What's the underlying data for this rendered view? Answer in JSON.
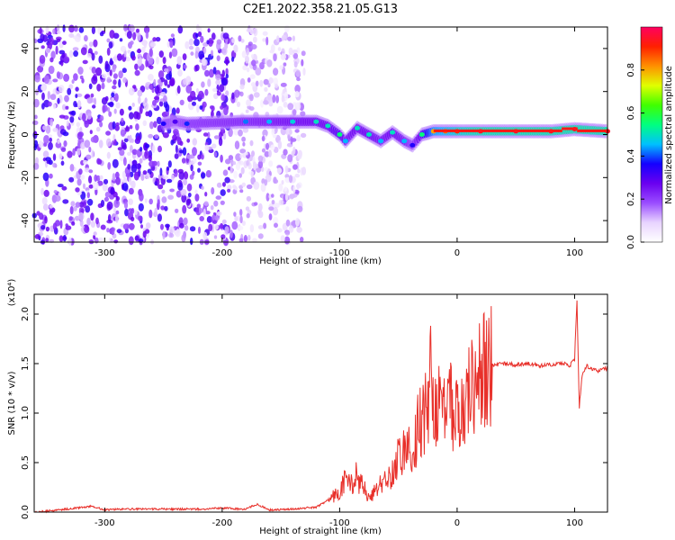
{
  "figure_title": "C2E1.2022.358.21.05.G13",
  "chart_data": [
    {
      "type": "heatmap",
      "title": "C2E1.2022.358.21.05.G13",
      "xlabel": "Height of straight line (km)",
      "ylabel": "Frequency (Hz)",
      "xlim": [
        -360,
        128
      ],
      "ylim": [
        -50,
        50
      ],
      "xticks": [
        -300,
        -200,
        -100,
        0,
        100
      ],
      "yticks": [
        -40,
        -20,
        0,
        20,
        40
      ],
      "grid": false,
      "colorbar": {
        "label": "Normalized spectral amplitude",
        "range": [
          0.0,
          1.0
        ],
        "ticks": [
          "0.0",
          "0.2",
          "0.4",
          "0.6",
          "0.8"
        ],
        "colors": [
          "#ffffff",
          "#e8d4ff",
          "#9a4dff",
          "#6a00f0",
          "#1400ff",
          "#00c0ff",
          "#00ff80",
          "#40ff00",
          "#e0ff00",
          "#ff9000",
          "#ff2000",
          "#ff0060"
        ]
      },
      "ridge": [
        {
          "x": -250,
          "y": 5,
          "amp": 0.35
        },
        {
          "x": -240,
          "y": 6,
          "amp": 0.3
        },
        {
          "x": -230,
          "y": 5,
          "amp": 0.38
        },
        {
          "x": -180,
          "y": 6,
          "amp": 0.42
        },
        {
          "x": -160,
          "y": 6,
          "amp": 0.45
        },
        {
          "x": -140,
          "y": 6,
          "amp": 0.48
        },
        {
          "x": -120,
          "y": 6,
          "amp": 0.5
        },
        {
          "x": -110,
          "y": 4,
          "amp": 0.5
        },
        {
          "x": -100,
          "y": 0,
          "amp": 0.55
        },
        {
          "x": -95,
          "y": -3,
          "amp": 0.45
        },
        {
          "x": -85,
          "y": 3,
          "amp": 0.5
        },
        {
          "x": -75,
          "y": 0,
          "amp": 0.5
        },
        {
          "x": -65,
          "y": -3,
          "amp": 0.45
        },
        {
          "x": -55,
          "y": 1,
          "amp": 0.5
        },
        {
          "x": -45,
          "y": -3,
          "amp": 0.45
        },
        {
          "x": -38,
          "y": -5,
          "amp": 0.35
        },
        {
          "x": -30,
          "y": 0,
          "amp": 0.55
        },
        {
          "x": -20,
          "y": 1.5,
          "amp": 0.8
        },
        {
          "x": -10,
          "y": 1.5,
          "amp": 0.85
        },
        {
          "x": 0,
          "y": 1.5,
          "amp": 0.9
        },
        {
          "x": 20,
          "y": 1.5,
          "amp": 0.95
        },
        {
          "x": 50,
          "y": 1.5,
          "amp": 0.95
        },
        {
          "x": 80,
          "y": 1.5,
          "amp": 0.95
        },
        {
          "x": 100,
          "y": 2.5,
          "amp": 0.95
        },
        {
          "x": 128,
          "y": 1.5,
          "amp": 0.95
        }
      ],
      "noise_region": {
        "x": [
          -360,
          -130
        ],
        "y": [
          -50,
          50
        ],
        "amp": [
          0.05,
          0.35
        ]
      }
    },
    {
      "type": "line",
      "xlabel": "Height of straight line (km)",
      "ylabel": "SNR (10 * v/v)",
      "yscale_note": "(x10⁴)",
      "xlim": [
        -360,
        128
      ],
      "ylim": [
        0,
        2.2
      ],
      "xticks": [
        -300,
        -200,
        -100,
        0,
        100
      ],
      "yticks": [
        "0.0",
        "0.5",
        "1.0",
        "1.5",
        "2.0"
      ],
      "ytick_values": [
        0.0,
        0.5,
        1.0,
        1.5,
        2.0
      ],
      "grid": false,
      "line_color": "#e8302a",
      "series": [
        {
          "x": [
            -360,
            -340,
            -310,
            -300,
            -290,
            -270,
            -240,
            -220,
            -200,
            -180,
            -170,
            -160,
            -140,
            -120,
            -110,
            -100,
            -95,
            -90,
            -85,
            -80,
            -75,
            -70,
            -65,
            -60,
            -55,
            -50,
            -45,
            -40,
            -35,
            -30,
            -25,
            -22,
            -20,
            -18,
            -15,
            -10,
            -5,
            0,
            5,
            10,
            15,
            20,
            25,
            30,
            40,
            50,
            60,
            70,
            80,
            90,
            96,
            100,
            102,
            104,
            106,
            110,
            115,
            120,
            128
          ],
          "y": [
            0.0,
            0.02,
            0.06,
            0.02,
            0.03,
            0.03,
            0.03,
            0.03,
            0.04,
            0.03,
            0.08,
            0.02,
            0.03,
            0.05,
            0.12,
            0.2,
            0.32,
            0.3,
            0.36,
            0.25,
            0.15,
            0.2,
            0.28,
            0.35,
            0.4,
            0.55,
            0.6,
            0.68,
            0.8,
            0.95,
            1.0,
            1.55,
            0.85,
            1.2,
            1.0,
            1.05,
            1.1,
            0.95,
            1.1,
            1.2,
            1.25,
            1.35,
            1.42,
            1.48,
            1.5,
            1.49,
            1.5,
            1.48,
            1.49,
            1.5,
            1.48,
            1.55,
            2.15,
            1.05,
            1.35,
            1.48,
            1.45,
            1.43,
            1.45
          ]
        }
      ]
    }
  ]
}
